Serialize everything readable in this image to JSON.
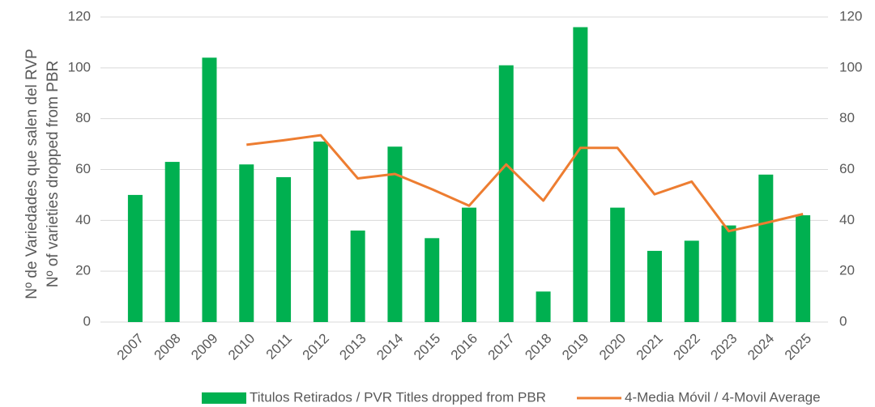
{
  "chart_data": {
    "type": "bar",
    "y_label": [
      "Nº de Variedades que salen del RVP",
      "Nº of varieties dropped from PBR"
    ],
    "categories": [
      "2007",
      "2008",
      "2009",
      "2010",
      "2011",
      "2012",
      "2013",
      "2014",
      "2015",
      "2016",
      "2017",
      "2018",
      "2019",
      "2020",
      "2021",
      "2022",
      "2023",
      "2024",
      "2025"
    ],
    "series": [
      {
        "name": "Titulos Retirados / PVR Titles dropped from PBR",
        "color": "#00b050",
        "type": "bar",
        "values": [
          50,
          63,
          104,
          62,
          57,
          71,
          36,
          69,
          33,
          45,
          101,
          12,
          116,
          45,
          28,
          32,
          38,
          58,
          42
        ]
      },
      {
        "name": "4-Media Móvil / 4-Movil Average",
        "color": "#ed7d31",
        "type": "line",
        "axis": "y2",
        "values": [
          null,
          null,
          null,
          69.75,
          71.5,
          73.5,
          56.5,
          58.25,
          52.25,
          45.75,
          62,
          47.75,
          68.5,
          68.5,
          50.25,
          55.25,
          35.75,
          39,
          42.5
        ]
      }
    ],
    "ylim": [
      0,
      120
    ],
    "yticks": [
      0,
      20,
      40,
      60,
      80,
      100,
      120
    ],
    "y2lim": [
      0,
      120
    ],
    "y2ticks": [
      0,
      20,
      40,
      60,
      80,
      100,
      120
    ],
    "grid": true,
    "legend": "bottom"
  }
}
